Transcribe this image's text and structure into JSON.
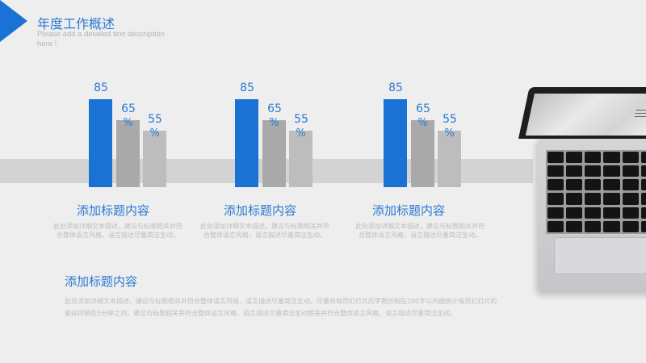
{
  "header": {
    "title": "年度工作概述",
    "subtitle": "Please add a detailed text description here !"
  },
  "chart_data": {
    "type": "bar",
    "groups": [
      {
        "values": [
          85,
          65,
          55
        ],
        "labels": [
          "85",
          "65 %",
          "55 %"
        ]
      },
      {
        "values": [
          85,
          65,
          55
        ],
        "labels": [
          "85",
          "65 %",
          "55 %"
        ]
      },
      {
        "values": [
          85,
          65,
          55
        ],
        "labels": [
          "85",
          "65 %",
          "55 %"
        ]
      }
    ],
    "colors": [
      "#1a73d4",
      "#a9a9aa",
      "#bdbdbe"
    ],
    "ylim": [
      0,
      100
    ]
  },
  "cards": [
    {
      "title": "添加标题内容",
      "text": "此处添加详细文本描述，建议与标题相关并符合整体语言风格，语言描述尽量简洁生动。"
    },
    {
      "title": "添加标题内容",
      "text": "此处添加详细文本描述，建议与标题相关并符合整体语言风格，语言描述尽量简洁生动。"
    },
    {
      "title": "添加标题内容",
      "text": "此处添加详细文本描述，建议与标题相关并符合整体语言风格，语言描述尽量简洁生动。"
    }
  ],
  "section": {
    "title": "添加标题内容",
    "text": "此处添加详细文本描述，建议与标题相关并符合整体语言风格，语言描述尽量简洁生动。尽量将每页幻灯片的字数控制在200字以内据统计每页幻灯片的最好控制在5分钟之内，建议与标题相关并符合整体语言风格，语言描述尽量简洁生动相关并符合整体语言风格，语言描述尽量简洁生动。"
  }
}
